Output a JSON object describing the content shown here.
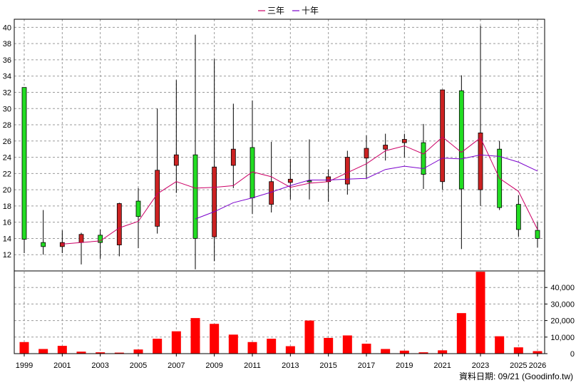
{
  "chart_data": {
    "type": "candlestick",
    "legend": [
      {
        "name": "三年",
        "color": "#cc0066"
      },
      {
        "name": "十年",
        "color": "#7a00cc"
      }
    ],
    "price_axis": {
      "ylim": [
        10,
        41
      ],
      "ticks": [
        12,
        14,
        16,
        18,
        20,
        22,
        24,
        26,
        28,
        30,
        32,
        34,
        36,
        38,
        40
      ]
    },
    "volume_axis": {
      "ylim": [
        0,
        50000
      ],
      "ticks": [
        "0",
        "10,000",
        "20,000",
        "30,000",
        "40,000"
      ]
    },
    "x_ticks": [
      "1999",
      "2001",
      "2003",
      "2005",
      "2007",
      "2009",
      "2011",
      "2013",
      "2015",
      "2017",
      "2019",
      "2021",
      "2023",
      "2025",
      "2026"
    ],
    "years": [
      1999,
      2000,
      2001,
      2002,
      2003,
      2004,
      2005,
      2006,
      2007,
      2008,
      2009,
      2010,
      2011,
      2012,
      2013,
      2014,
      2015,
      2016,
      2017,
      2018,
      2019,
      2020,
      2021,
      2022,
      2023,
      2024,
      2025,
      2026
    ],
    "candles": [
      {
        "open": 32.6,
        "close": 13.9,
        "high": 32.6,
        "low": 12.2
      },
      {
        "open": 13.5,
        "close": 13.0,
        "high": 17.5,
        "low": 12.0
      },
      {
        "open": 13.0,
        "close": 13.5,
        "high": 15.0,
        "low": 12.2
      },
      {
        "open": 13.5,
        "close": 14.5,
        "high": 14.7,
        "low": 10.8
      },
      {
        "open": 14.4,
        "close": 13.5,
        "high": 15.1,
        "low": 11.5
      },
      {
        "open": 13.2,
        "close": 18.3,
        "high": 18.4,
        "low": 11.8
      },
      {
        "open": 18.6,
        "close": 16.7,
        "high": 20.2,
        "low": 12.8
      },
      {
        "open": 15.5,
        "close": 22.4,
        "high": 30.0,
        "low": 14.6
      },
      {
        "open": 23.0,
        "close": 24.3,
        "high": 33.5,
        "low": 19.6
      },
      {
        "open": 24.3,
        "close": 14.0,
        "high": 39.1,
        "low": 10.2
      },
      {
        "open": 14.2,
        "close": 22.8,
        "high": 36.1,
        "low": 11.2
      },
      {
        "open": 23.0,
        "close": 25.0,
        "high": 30.6,
        "low": 20.2
      },
      {
        "open": 25.2,
        "close": 19.0,
        "high": 31.0,
        "low": 17.0
      },
      {
        "open": 18.2,
        "close": 21.0,
        "high": 25.9,
        "low": 17.2
      },
      {
        "open": 20.9,
        "close": 21.3,
        "high": 23.8,
        "low": 18.8
      },
      {
        "open": 21.1,
        "close": 21.0,
        "high": 26.2,
        "low": 18.8
      },
      {
        "open": 21.0,
        "close": 21.6,
        "high": 22.5,
        "low": 18.5
      },
      {
        "open": 20.7,
        "close": 24.0,
        "high": 24.8,
        "low": 19.4
      },
      {
        "open": 23.9,
        "close": 25.1,
        "high": 26.7,
        "low": 21.4
      },
      {
        "open": 25.0,
        "close": 25.5,
        "high": 26.9,
        "low": 23.6
      },
      {
        "open": 25.8,
        "close": 26.2,
        "high": 26.9,
        "low": 24.0
      },
      {
        "open": 25.8,
        "close": 21.9,
        "high": 28.1,
        "low": 20.1
      },
      {
        "open": 21.0,
        "close": 32.3,
        "high": 32.3,
        "low": 20.0
      },
      {
        "open": 32.2,
        "close": 20.1,
        "high": 34.1,
        "low": 12.7
      },
      {
        "open": 20.0,
        "close": 27.0,
        "high": 40.2,
        "low": 18.0
      },
      {
        "open": 25.0,
        "close": 17.8,
        "high": 26.0,
        "low": 17.5
      },
      {
        "open": 18.2,
        "close": 15.1,
        "high": 19.3,
        "low": 14.2
      },
      {
        "open": 15.0,
        "close": 14.0,
        "high": 16.0,
        "low": 12.9
      }
    ],
    "ma_3yr": [
      null,
      null,
      13.3,
      13.5,
      13.7,
      15.3,
      16.1,
      19.5,
      21.0,
      20.2,
      20.3,
      20.5,
      22.2,
      21.6,
      20.3,
      20.8,
      21.0,
      22.1,
      23.2,
      24.8,
      25.4,
      24.4,
      26.5,
      24.6,
      26.4,
      21.4,
      19.8,
      15.1
    ],
    "ma_10yr": [
      null,
      null,
      null,
      null,
      null,
      null,
      null,
      null,
      null,
      16.4,
      17.3,
      18.4,
      19.0,
      19.7,
      20.5,
      21.2,
      21.2,
      21.3,
      21.4,
      22.5,
      22.9,
      22.6,
      23.9,
      23.8,
      24.3,
      24.1,
      23.4,
      22.3
    ],
    "volume": [
      7000,
      2800,
      4700,
      1200,
      800,
      600,
      2500,
      9000,
      13500,
      21500,
      18000,
      11500,
      7000,
      9000,
      4500,
      20000,
      9500,
      11000,
      6000,
      2800,
      1800,
      800,
      2000,
      24500,
      49500,
      10500,
      3800,
      1500
    ]
  },
  "footer": {
    "label": "資料日期: 09/21 (Goodinfo.tw)"
  }
}
